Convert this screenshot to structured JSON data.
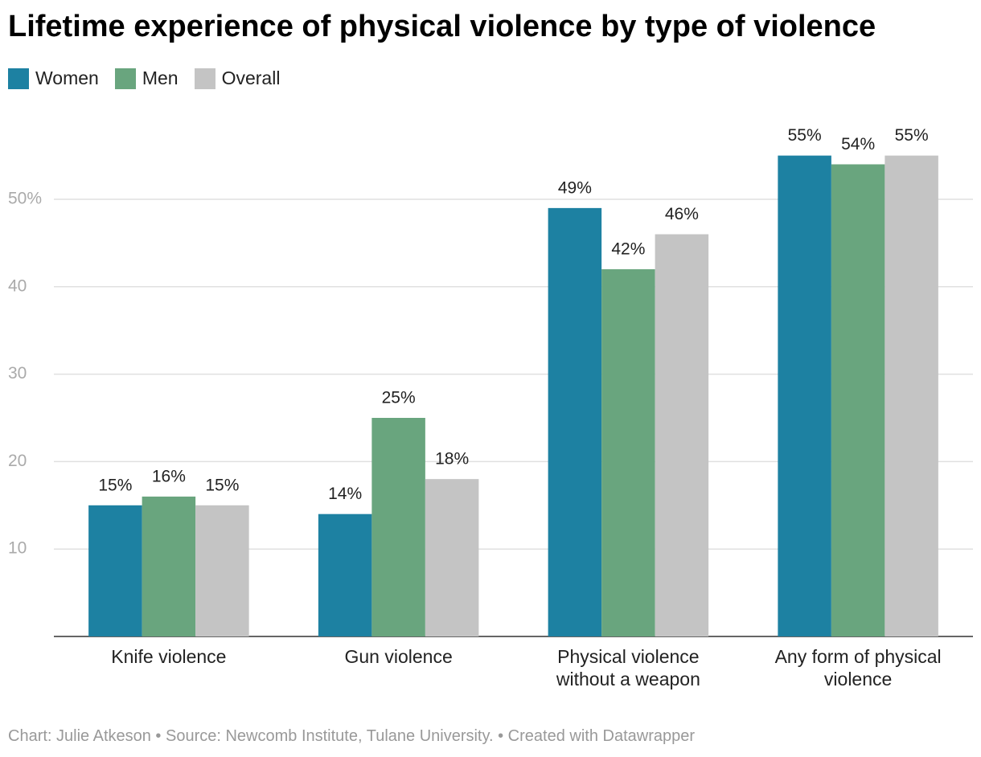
{
  "chart_data": {
    "type": "bar",
    "title": "Lifetime experience of physical violence by type of violence",
    "categories": [
      "Knife violence",
      "Gun violence",
      "Physical violence without a weapon",
      "Any form of physical violence"
    ],
    "series": [
      {
        "name": "Women",
        "color": "#1d81a2",
        "values": [
          15,
          14,
          49,
          55
        ],
        "value_labels": [
          "15%",
          "14%",
          "49%",
          "55%"
        ]
      },
      {
        "name": "Men",
        "color": "#69a57e",
        "values": [
          16,
          25,
          42,
          54
        ],
        "value_labels": [
          "16%",
          "25%",
          "42%",
          "54%"
        ]
      },
      {
        "name": "Overall",
        "color": "#c4c4c4",
        "values": [
          15,
          18,
          46,
          55
        ],
        "value_labels": [
          "15%",
          "18%",
          "46%",
          "55%"
        ]
      }
    ],
    "ylim": [
      0,
      60
    ],
    "yticks": [
      10,
      20,
      30,
      40,
      {
        "value": 50,
        "label": "50%"
      }
    ],
    "grid": true,
    "footer": "Chart: Julie Atkeson • Source: Newcomb Institute, Tulane University. • Created with Datawrapper"
  }
}
